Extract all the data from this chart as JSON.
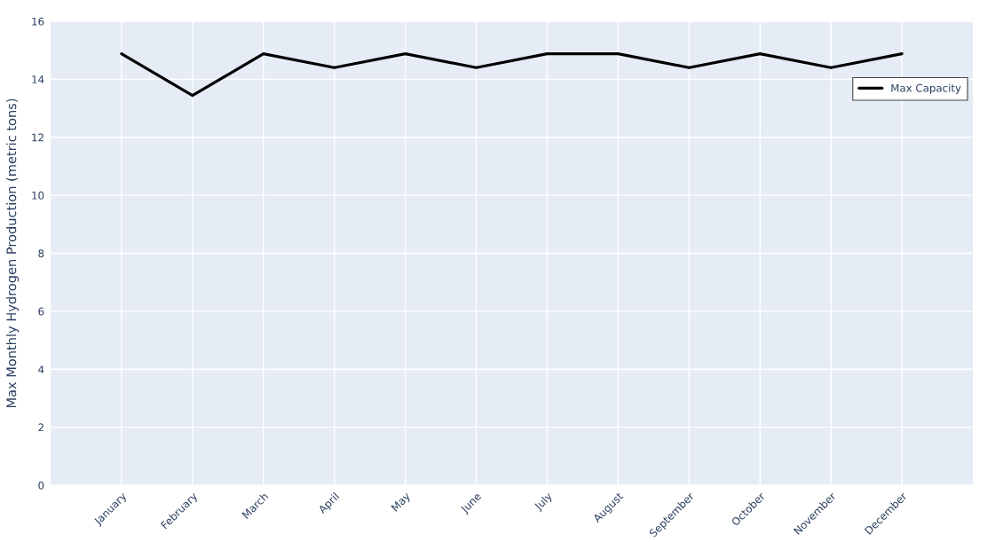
{
  "chart_data": {
    "type": "line",
    "ylabel": "Max Monthly Hydrogen Production (metric tons)",
    "categories": [
      "January",
      "February",
      "March",
      "April",
      "May",
      "June",
      "July",
      "August",
      "September",
      "October",
      "November",
      "December"
    ],
    "series": [
      {
        "name": "Max Capacity",
        "color": "#000000",
        "values": [
          14.88,
          13.44,
          14.88,
          14.4,
          14.88,
          14.4,
          14.88,
          14.88,
          14.4,
          14.88,
          14.4,
          14.88
        ]
      }
    ],
    "ylim": [
      0,
      16
    ],
    "yticks": [
      0,
      2,
      4,
      6,
      8,
      10,
      12,
      14,
      16
    ],
    "grid": true,
    "legend": "top right",
    "marker": "none",
    "line_style": "solid"
  }
}
